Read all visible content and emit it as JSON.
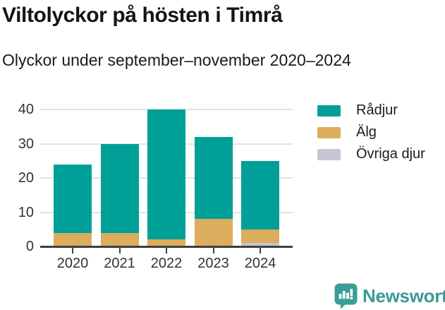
{
  "header": {
    "title": "Viltolyckor på hösten i Timrå",
    "subtitle": "Olyckor under september–november 2020–2024"
  },
  "chart_data": {
    "type": "bar",
    "stacked": true,
    "title": "Viltolyckor på hösten i Timrå",
    "subtitle": "Olyckor under september–november 2020–2024",
    "categories": [
      "2020",
      "2021",
      "2022",
      "2023",
      "2024"
    ],
    "series": [
      {
        "name": "Rådjur",
        "color": "#00A099",
        "values": [
          20,
          26,
          38,
          24,
          20
        ]
      },
      {
        "name": "Älg",
        "color": "#DCAD5C",
        "values": [
          4,
          4,
          2,
          8,
          4
        ]
      },
      {
        "name": "Övriga djur",
        "color": "#C6C5D2",
        "values": [
          0,
          0,
          0,
          0,
          1
        ]
      }
    ],
    "stack_totals": [
      24,
      30,
      40,
      32,
      25
    ],
    "stack_order_bottom_to_top": [
      "Övriga djur",
      "Älg",
      "Rådjur"
    ],
    "xlabel": "",
    "ylabel": "",
    "ylim": [
      0,
      40
    ],
    "yticks": [
      0,
      10,
      20,
      30,
      40
    ],
    "grid": true,
    "legend_position": "right"
  },
  "colors": {
    "teal": "#00A099",
    "gold": "#DCAD5C",
    "light_gray": "#C6C5D2",
    "gridline": "#E3E3E3",
    "axis": "#3F3F3F",
    "axis_text": "#333333",
    "brand_teal": "#3A9B94"
  },
  "footer": {
    "brand": "Newsworthy",
    "logo_icon": "newsworthy-speech-bubble-bar-chart-icon"
  }
}
